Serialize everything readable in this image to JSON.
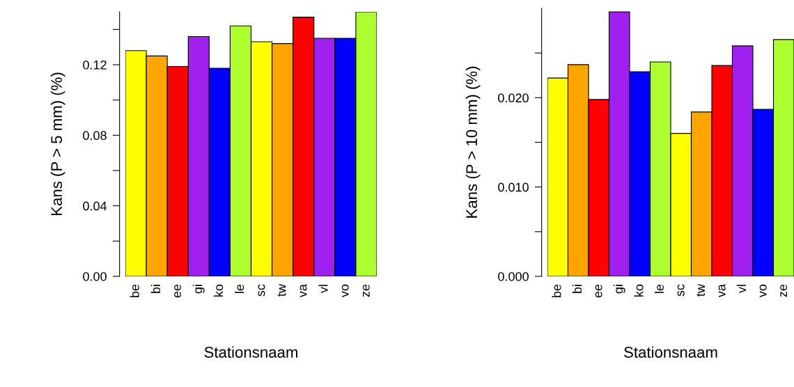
{
  "chart_data": [
    {
      "type": "bar",
      "xlabel": "Stationsnaam",
      "ylabel": "Kans (P > 5 mm) (%)",
      "categories": [
        "be",
        "bi",
        "ee",
        "gi",
        "ko",
        "le",
        "sc",
        "tw",
        "va",
        "vl",
        "vo",
        "ze"
      ],
      "values": [
        0.128,
        0.125,
        0.119,
        0.136,
        0.118,
        0.142,
        0.133,
        0.132,
        0.147,
        0.135,
        0.135,
        0.15
      ],
      "colors": [
        "#ffff00",
        "#ffa500",
        "#ff0000",
        "#a020f0",
        "#0000ff",
        "#adff2f",
        "#ffff00",
        "#ffa500",
        "#ff0000",
        "#a020f0",
        "#0000ff",
        "#adff2f"
      ],
      "ylim": [
        0,
        0.15
      ],
      "yticks": [
        {
          "value": 0,
          "label": "0.00"
        },
        {
          "value": 0.02,
          "label": null
        },
        {
          "value": 0.04,
          "label": "0.04"
        },
        {
          "value": 0.06,
          "label": null
        },
        {
          "value": 0.08,
          "label": "0.08"
        },
        {
          "value": 0.1,
          "label": null
        },
        {
          "value": 0.12,
          "label": "0.12"
        },
        {
          "value": 0.14,
          "label": null
        }
      ]
    },
    {
      "type": "bar",
      "xlabel": "Stationsnaam",
      "ylabel": "Kans (P > 10 mm) (%)",
      "categories": [
        "be",
        "bi",
        "ee",
        "gi",
        "ko",
        "le",
        "sc",
        "tw",
        "va",
        "vl",
        "vo",
        "ze"
      ],
      "values": [
        0.0222,
        0.0237,
        0.0198,
        0.0296,
        0.0229,
        0.024,
        0.016,
        0.0184,
        0.0236,
        0.0258,
        0.0187,
        0.0265
      ],
      "colors": [
        "#ffff00",
        "#ffa500",
        "#ff0000",
        "#a020f0",
        "#0000ff",
        "#adff2f",
        "#ffff00",
        "#ffa500",
        "#ff0000",
        "#a020f0",
        "#0000ff",
        "#adff2f"
      ],
      "ylim": [
        0,
        0.03
      ],
      "yticks": [
        {
          "value": 0,
          "label": "0.000"
        },
        {
          "value": 0.005,
          "label": null
        },
        {
          "value": 0.01,
          "label": "0.010"
        },
        {
          "value": 0.015,
          "label": null
        },
        {
          "value": 0.02,
          "label": "0.020"
        },
        {
          "value": 0.025,
          "label": null
        }
      ]
    }
  ]
}
